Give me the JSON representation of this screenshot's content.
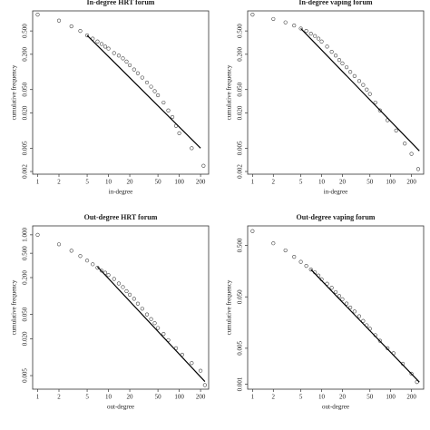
{
  "chart_data": [
    {
      "type": "scatter",
      "title": "In-degree HRT forum",
      "x_label": "in-degree",
      "y_label": "cumulative frequency",
      "log_x": true,
      "log_y": true,
      "x": [
        1,
        2,
        3,
        4,
        5,
        6,
        7,
        8,
        9,
        10,
        12,
        14,
        16,
        18,
        20,
        23,
        26,
        30,
        35,
        40,
        45,
        50,
        60,
        70,
        80,
        90,
        100,
        150,
        220
      ],
      "series": [
        {
          "name": null,
          "color": "#444444",
          "values": [
            0.95,
            0.75,
            0.6,
            0.5,
            0.42,
            0.37,
            0.33,
            0.3,
            0.27,
            0.25,
            0.21,
            0.19,
            0.17,
            0.15,
            0.13,
            0.11,
            0.095,
            0.08,
            0.066,
            0.056,
            0.047,
            0.04,
            0.03,
            0.022,
            0.017,
            0.012,
            0.009,
            0.005,
            0.0025
          ]
        }
      ],
      "fit": {
        "x": [
          5,
          200
        ],
        "y": [
          0.42,
          0.005
        ]
      },
      "xlim": [
        0.85,
        260
      ],
      "ylim": [
        0.0018,
        1.1
      ],
      "xticks": [
        1,
        2,
        5,
        10,
        20,
        50,
        100,
        200
      ],
      "yticks": [
        {
          "value": 0.5,
          "label": "0.500"
        },
        {
          "value": 0.2,
          "label": "0.200"
        },
        {
          "value": 0.05,
          "label": "0.050"
        },
        {
          "value": 0.02,
          "label": "0.020"
        },
        {
          "value": 0.005,
          "label": "0.005"
        },
        {
          "value": 0.002,
          "label": "0.002"
        }
      ]
    },
    {
      "type": "scatter",
      "title": "In-degree vaping forum",
      "x_label": "in-degree",
      "y_label": "cumulative frequency",
      "log_x": true,
      "log_y": true,
      "x": [
        1,
        2,
        3,
        4,
        5,
        6,
        7,
        8,
        9,
        10,
        12,
        14,
        16,
        18,
        20,
        23,
        26,
        30,
        35,
        40,
        45,
        50,
        60,
        70,
        90,
        120,
        160,
        200,
        250
      ],
      "series": [
        {
          "name": null,
          "color": "#444444",
          "values": [
            0.95,
            0.8,
            0.7,
            0.62,
            0.55,
            0.5,
            0.45,
            0.41,
            0.37,
            0.33,
            0.27,
            0.22,
            0.19,
            0.16,
            0.14,
            0.12,
            0.1,
            0.085,
            0.07,
            0.06,
            0.05,
            0.042,
            0.03,
            0.022,
            0.015,
            0.01,
            0.006,
            0.004,
            0.0022
          ]
        }
      ],
      "fit": {
        "x": [
          5,
          260
        ],
        "y": [
          0.55,
          0.0045
        ]
      },
      "xlim": [
        0.85,
        300
      ],
      "ylim": [
        0.0018,
        1.1
      ],
      "xticks": [
        1,
        2,
        5,
        10,
        20,
        50,
        100,
        200
      ],
      "yticks": [
        {
          "value": 0.5,
          "label": "0.500"
        },
        {
          "value": 0.2,
          "label": "0.200"
        },
        {
          "value": 0.05,
          "label": "0.050"
        },
        {
          "value": 0.02,
          "label": "0.020"
        },
        {
          "value": 0.005,
          "label": "0.005"
        },
        {
          "value": 0.002,
          "label": "0.002"
        }
      ]
    },
    {
      "type": "scatter",
      "title": "Out-degree HRT forum",
      "x_label": "out-degree",
      "y_label": "cumulative frequency",
      "log_x": true,
      "log_y": true,
      "x": [
        1,
        2,
        3,
        4,
        5,
        6,
        7,
        8,
        9,
        10,
        12,
        14,
        16,
        18,
        20,
        23,
        26,
        30,
        35,
        40,
        45,
        50,
        60,
        70,
        90,
        110,
        150,
        200,
        230
      ],
      "series": [
        {
          "name": null,
          "color": "#444444",
          "values": [
            1.0,
            0.7,
            0.55,
            0.45,
            0.38,
            0.33,
            0.29,
            0.26,
            0.24,
            0.22,
            0.19,
            0.16,
            0.14,
            0.12,
            0.105,
            0.09,
            0.075,
            0.062,
            0.05,
            0.042,
            0.036,
            0.03,
            0.024,
            0.019,
            0.014,
            0.011,
            0.008,
            0.006,
            0.0035
          ]
        }
      ],
      "fit": {
        "x": [
          7,
          230
        ],
        "y": [
          0.3,
          0.004
        ]
      },
      "xlim": [
        0.85,
        260
      ],
      "ylim": [
        0.003,
        1.4
      ],
      "xticks": [
        1,
        2,
        5,
        10,
        20,
        50,
        100,
        200
      ],
      "yticks": [
        {
          "value": 1,
          "label": "1.000"
        },
        {
          "value": 0.5,
          "label": "0.500"
        },
        {
          "value": 0.2,
          "label": "0.200"
        },
        {
          "value": 0.05,
          "label": "0.050"
        },
        {
          "value": 0.02,
          "label": "0.020"
        },
        {
          "value": 0.005,
          "label": "0.005"
        }
      ]
    },
    {
      "type": "scatter",
      "title": "Out-degree vaping forum",
      "x_label": "out-degree",
      "y_label": "cumulative frequency",
      "log_x": true,
      "log_y": true,
      "x": [
        1,
        2,
        3,
        4,
        5,
        6,
        7,
        8,
        9,
        10,
        12,
        14,
        16,
        18,
        20,
        23,
        26,
        30,
        35,
        40,
        45,
        50,
        60,
        70,
        90,
        110,
        150,
        200,
        240
      ],
      "series": [
        {
          "name": null,
          "color": "#444444",
          "values": [
            0.95,
            0.55,
            0.4,
            0.3,
            0.24,
            0.2,
            0.17,
            0.15,
            0.13,
            0.11,
            0.09,
            0.075,
            0.062,
            0.052,
            0.045,
            0.037,
            0.031,
            0.026,
            0.021,
            0.017,
            0.014,
            0.012,
            0.009,
            0.007,
            0.005,
            0.004,
            0.0025,
            0.0016,
            0.0011
          ]
        }
      ],
      "fit": {
        "x": [
          7,
          260
        ],
        "y": [
          0.17,
          0.0011
        ]
      },
      "xlim": [
        0.85,
        300
      ],
      "ylim": [
        0.0008,
        1.2
      ],
      "xticks": [
        1,
        2,
        5,
        10,
        20,
        50,
        100,
        200
      ],
      "yticks": [
        {
          "value": 0.5,
          "label": "0.500"
        },
        {
          "value": 0.05,
          "label": "0.050"
        },
        {
          "value": 0.005,
          "label": "0.005"
        },
        {
          "value": 0.001,
          "label": "0.001"
        }
      ]
    }
  ]
}
